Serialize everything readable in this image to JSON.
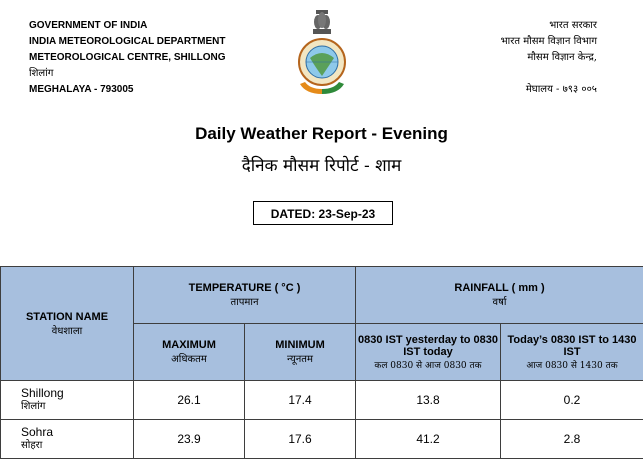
{
  "header": {
    "left": [
      "GOVERNMENT OF INDIA",
      "INDIA METEOROLOGICAL DEPARTMENT",
      "METEOROLOGICAL CENTRE, SHILLONG",
      "शिलांग",
      "MEGHALAYA - 793005"
    ],
    "right": [
      "भारत सरकार",
      "भारत मौसम विज्ञान विभाग",
      "मौसम विज्ञान केन्द्र,",
      "मेघालय - ७९३ ००५"
    ]
  },
  "title_en": "Daily Weather Report - Evening",
  "title_hi": "दैनिक मौसम रिपोर्ट - शाम",
  "dated": "DATED: 23-Sep-23",
  "table": {
    "station_en": "STATION NAME",
    "station_hi": "वेधशाला",
    "temp_en": "TEMPERATURE ( °C )",
    "temp_hi": "तापमान",
    "rain_en": "RAINFALL ( mm )",
    "rain_hi": "वर्षा",
    "max_en": "MAXIMUM",
    "max_hi": "अधिकतम",
    "min_en": "MINIMUM",
    "min_hi": "न्यूनतम",
    "rain1_en": "0830 IST yesterday to 0830 IST today",
    "rain1_hi": "कल 0830 से आज 0830 तक",
    "rain2_en": "Today’s 0830 IST to 1430 IST",
    "rain2_hi": "आज 0830 से 1430 तक",
    "rows": [
      {
        "name_en": "Shillong",
        "name_hi": "शिलांग",
        "max": "26.1",
        "min": "17.4",
        "rain1": "13.8",
        "rain2": "0.2"
      },
      {
        "name_en": "Sohra",
        "name_hi": "सोहरा",
        "max": "23.9",
        "min": "17.6",
        "rain1": "41.2",
        "rain2": "2.8"
      }
    ]
  }
}
